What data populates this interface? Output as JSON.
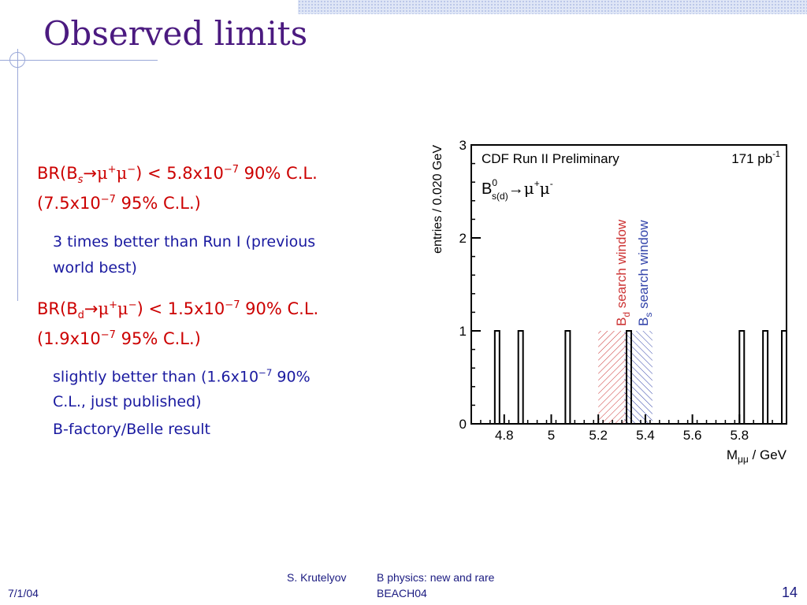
{
  "slide": {
    "title": "Observed limits",
    "bullets": {
      "b1": {
        "prefix": "BR(B",
        "sub": "s",
        "arrow": "→",
        "mu1": "μ",
        "sup1": "+",
        "mu2": "μ",
        "sup2": "−",
        "rest": ") <  5.8x10",
        "exp": "−7",
        "tail": "  90% C.L."
      },
      "b1_line2": {
        "base": "(7.5x10",
        "exp": "−7",
        "tail": "  95% C.L.)"
      },
      "b1_sub": [
        "3 times better than Run I (previous",
        "world best)"
      ],
      "b2": {
        "prefix": "BR(B",
        "sub": "d",
        "arrow": "→",
        "mu1": "μ",
        "sup1": "+",
        "mu2": "μ",
        "sup2": "−",
        "rest": ") <  1.5x10",
        "exp": "−7",
        "tail": "  90% C.L."
      },
      "b2_line2": {
        "base": "(1.9x10",
        "exp": "−7",
        "tail": "   95% C.L.)"
      },
      "b2_sub": {
        "line1_base": "slightly better than (1.6x10",
        "line1_exp": "−7",
        "line1_tail": "  90%",
        "line2": "C.L., just published)",
        "line3": "B-factory/Belle result"
      }
    }
  },
  "footer": {
    "date": "7/1/04",
    "author": "S. Krutelyov",
    "topic": "B physics: new and rare",
    "event": "BEACH04",
    "page": "14"
  },
  "colors": {
    "title": "#4b1a80",
    "level1": "#cc0000",
    "level2": "#1a1aa0",
    "bd_window": "#cc3333",
    "bs_window": "#3344aa"
  },
  "chart_data": {
    "type": "bar",
    "header": "CDF Run II Preliminary",
    "luminosity": "171 pb",
    "luminosity_exp": "-1",
    "decay_label": {
      "base": "B",
      "sup": "0",
      "sub": "s(d)",
      "arrow": "→",
      "mu": "μ",
      "sup_plus": "+",
      "sup_minus": "-"
    },
    "ylabel": "entries / 0.020 GeV",
    "xlabel_prefix": "M",
    "xlabel_sub": "μμ",
    "xlabel_suffix": " / GeV",
    "xlim": [
      4.66,
      6.0
    ],
    "ylim": [
      0,
      3
    ],
    "xticks": [
      "4.8",
      "5",
      "5.2",
      "5.4",
      "5.6",
      "5.8"
    ],
    "xtick_values": [
      4.8,
      5.0,
      5.2,
      5.4,
      5.6,
      5.8
    ],
    "yticks": [
      "0",
      "1",
      "2",
      "3"
    ],
    "ytick_values": [
      0,
      1,
      2,
      3
    ],
    "bin_width": 0.02,
    "entries": [
      {
        "x": 4.76,
        "y": 1
      },
      {
        "x": 4.86,
        "y": 1
      },
      {
        "x": 5.06,
        "y": 1
      },
      {
        "x": 5.32,
        "y": 1
      },
      {
        "x": 5.8,
        "y": 1
      },
      {
        "x": 5.9,
        "y": 1
      },
      {
        "x": 5.98,
        "y": 1
      }
    ],
    "windows": [
      {
        "name": "B_d search window",
        "label_base": "B",
        "label_sub": "d",
        "label_rest": " search window",
        "range": [
          5.2,
          5.32
        ],
        "height": 1,
        "color": "#cc3333"
      },
      {
        "name": "B_s search window",
        "label_base": "B",
        "label_sub": "s",
        "label_rest": " search window",
        "range": [
          5.31,
          5.43
        ],
        "height": 1,
        "color": "#3344aa"
      }
    ]
  }
}
